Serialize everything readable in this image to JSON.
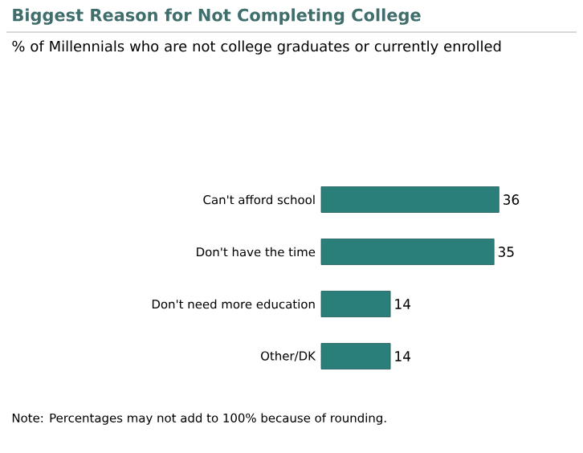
{
  "chart_data": {
    "type": "bar",
    "orientation": "horizontal",
    "title": "Biggest Reason for Not Completing College",
    "subtitle": "% of Millennials who are not college graduates or currently enrolled",
    "categories": [
      "Can't afford school",
      "Don't have the time",
      "Don't need more education",
      "Other/DK"
    ],
    "values": [
      36,
      35,
      14,
      14
    ],
    "color": "#2b7f7a",
    "data_labels": true,
    "annotations": [
      "Note: Percentages may not add to 100% because of rounding."
    ]
  }
}
